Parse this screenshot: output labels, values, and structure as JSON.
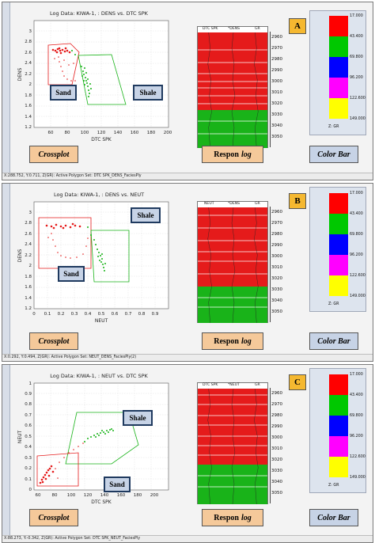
{
  "panels": [
    {
      "badge": "A",
      "title": "Log Data: KIWA-1, : DENS vs. DTC SPK",
      "xlabel": "DTC SPK",
      "ylabel": "DENS",
      "xticks": [
        "60",
        "80",
        "100",
        "120",
        "140",
        "160",
        "180",
        "200"
      ],
      "yticks": [
        "1",
        "1.2",
        "1.4",
        "1.6",
        "1.8",
        "2",
        "2.2",
        "2.4",
        "2.6",
        "2.8",
        "3"
      ],
      "labels": {
        "sand": "Sand",
        "shale": "Shale"
      },
      "tracks": [
        "DTC SPK",
        "*DENS",
        "GR"
      ],
      "status": "X:288.752,  Y:0.711,  Z(GR):  Active Polygon Set: DTC SPK_DENS_FaciesPly"
    },
    {
      "badge": "B",
      "title": "Log Data: KIWA-1, : DENS vs. NEUT",
      "xlabel": "NEUT",
      "ylabel": "DENS",
      "xticks": [
        "0",
        "0.1",
        "0.2",
        "0.3",
        "0.4",
        "0.5",
        "0.6",
        "0.7",
        "0.8",
        "0.9"
      ],
      "yticks": [
        "1",
        "1.2",
        "1.4",
        "1.6",
        "1.8",
        "2",
        "2.2",
        "2.4",
        "2.6",
        "2.8",
        "3"
      ],
      "labels": {
        "sand": "Sand",
        "shale": "Shale"
      },
      "tracks": [
        "NEUT",
        "*DENS",
        "GR"
      ],
      "status": "X:0.292,  Y:0.494,  Z(GR):  Active Polygon Set: NEUT_DENS_FaciesPly(2)"
    },
    {
      "badge": "C",
      "title": "Log Data: KIWA-1, : NEUT vs. DTC SPK",
      "xlabel": "DTC SPK",
      "ylabel": "NEUT",
      "xticks": [
        "60",
        "80",
        "100",
        "120",
        "140",
        "160",
        "180",
        "200"
      ],
      "yticks": [
        "0",
        "0.1",
        "0.2",
        "0.3",
        "0.4",
        "0.5",
        "0.6",
        "0.7",
        "0.8",
        "0.9",
        "1"
      ],
      "labels": {
        "sand": "Sand",
        "shale": "Shale"
      },
      "tracks": [
        "DTC SPK",
        "*NEUT",
        "GR"
      ],
      "status": "X:88.273,  Y:-0.342,  Z(GR):  Active Polygon Set: DTC SPK_NEUT_FaciesPly"
    }
  ],
  "depths": [
    "2960",
    "2970",
    "2980",
    "2990",
    "3000",
    "3010",
    "3020",
    "3030",
    "3040",
    "3050"
  ],
  "captions": {
    "crossplot": "Crossplot",
    "respon": "Respon",
    "respon_log": "log",
    "colorbar": "Color Bar"
  },
  "colorbar": {
    "ticks": [
      "17.000",
      "43.400",
      "69.800",
      "96.200",
      "122.600",
      "149.000"
    ],
    "z_label": "Z: GR",
    "colors": [
      "#ff0000",
      "#00c800",
      "#0000ff",
      "#ff00ff",
      "#ffff00"
    ]
  },
  "facies_colors": {
    "sand": "#e51b1b",
    "shale": "#19b319"
  }
}
